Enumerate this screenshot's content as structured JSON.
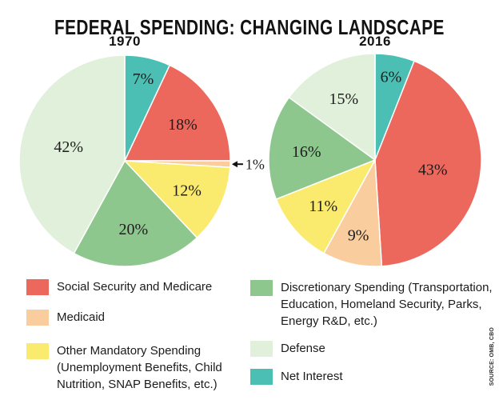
{
  "title": "FEDERAL SPENDING: CHANGING LANDSCAPE",
  "source": "SOURCE: OMB, CBO",
  "colors": {
    "social_security_medicare": "#EC675C",
    "medicaid": "#FACD9F",
    "other_mandatory": "#FAEB6F",
    "discretionary": "#8DC78D",
    "defense": "#E0F0DA",
    "net_interest": "#4BBFB4",
    "label_text": "#1d1d1d",
    "background": "#ffffff"
  },
  "chart_data": [
    {
      "type": "pie",
      "title": "1970",
      "unit": "percent of federal spending",
      "start_angle_deg": 0,
      "direction": "clockwise",
      "value_suffix": "%",
      "slices": [
        {
          "label": "Net Interest",
          "value": 7,
          "color": "#4BBFB4"
        },
        {
          "label": "Social Security and Medicare",
          "value": 18,
          "color": "#EC675C"
        },
        {
          "label": "Medicaid",
          "value": 1,
          "color": "#FACD9F",
          "label_outside": true
        },
        {
          "label": "Other Mandatory Spending",
          "value": 12,
          "color": "#FAEB6F"
        },
        {
          "label": "Discretionary Spending",
          "value": 20,
          "color": "#8DC78D"
        },
        {
          "label": "Defense",
          "value": 42,
          "color": "#E0F0DA"
        }
      ]
    },
    {
      "type": "pie",
      "title": "2016",
      "unit": "percent of federal spending",
      "start_angle_deg": 0,
      "direction": "clockwise",
      "value_suffix": "%",
      "slices": [
        {
          "label": "Net Interest",
          "value": 6,
          "color": "#4BBFB4"
        },
        {
          "label": "Social Security and Medicare",
          "value": 43,
          "color": "#EC675C"
        },
        {
          "label": "Medicaid",
          "value": 9,
          "color": "#FACD9F"
        },
        {
          "label": "Other Mandatory Spending",
          "value": 11,
          "color": "#FAEB6F"
        },
        {
          "label": "Discretionary Spending",
          "value": 16,
          "color": "#8DC78D"
        },
        {
          "label": "Defense",
          "value": 15,
          "color": "#E0F0DA"
        }
      ]
    }
  ],
  "legend": {
    "position": "bottom",
    "columns": [
      [
        {
          "color": "#EC675C",
          "label": "Social Security and Medicare"
        },
        {
          "color": "#FACD9F",
          "label": "Medicaid"
        },
        {
          "color": "#FAEB6F",
          "label": "Other Mandatory Spending (Unemployment Benefits, Child Nutrition, SNAP Benefits, etc.)"
        }
      ],
      [
        {
          "color": "#8DC78D",
          "label": "Discretionary Spending (Transportation, Education, Homeland Security, Parks, Energy R&D, etc.)"
        },
        {
          "color": "#E0F0DA",
          "label": "Defense"
        },
        {
          "color": "#4BBFB4",
          "label": "Net Interest"
        }
      ]
    ]
  }
}
